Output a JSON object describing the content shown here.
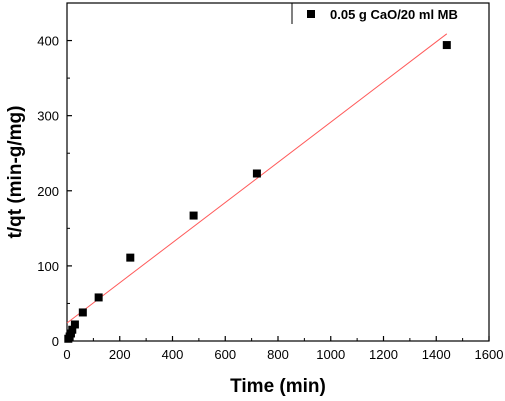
{
  "chart_data": {
    "type": "scatter",
    "title": "",
    "xlabel": "Time (min)",
    "ylabel": "t/qt (min-g/mg)",
    "xlim": [
      0,
      1600
    ],
    "ylim": [
      0,
      450
    ],
    "xticks": [
      0,
      200,
      400,
      600,
      800,
      1000,
      1200,
      1400,
      1600
    ],
    "yticks": [
      0,
      100,
      200,
      300,
      400
    ],
    "grid": false,
    "legend_position": "top-right",
    "series": [
      {
        "name": "0.05 g CaO/20 ml MB",
        "marker": "square",
        "color": "#000000",
        "x": [
          5,
          10,
          15,
          20,
          30,
          60,
          120,
          240,
          480,
          720,
          1440
        ],
        "y": [
          3,
          6,
          10,
          15,
          22,
          38,
          58,
          111,
          167,
          223,
          394
        ]
      }
    ],
    "fit_line": {
      "color": "#ff5a5a",
      "x": [
        0,
        1440
      ],
      "y": [
        24,
        409
      ]
    }
  }
}
